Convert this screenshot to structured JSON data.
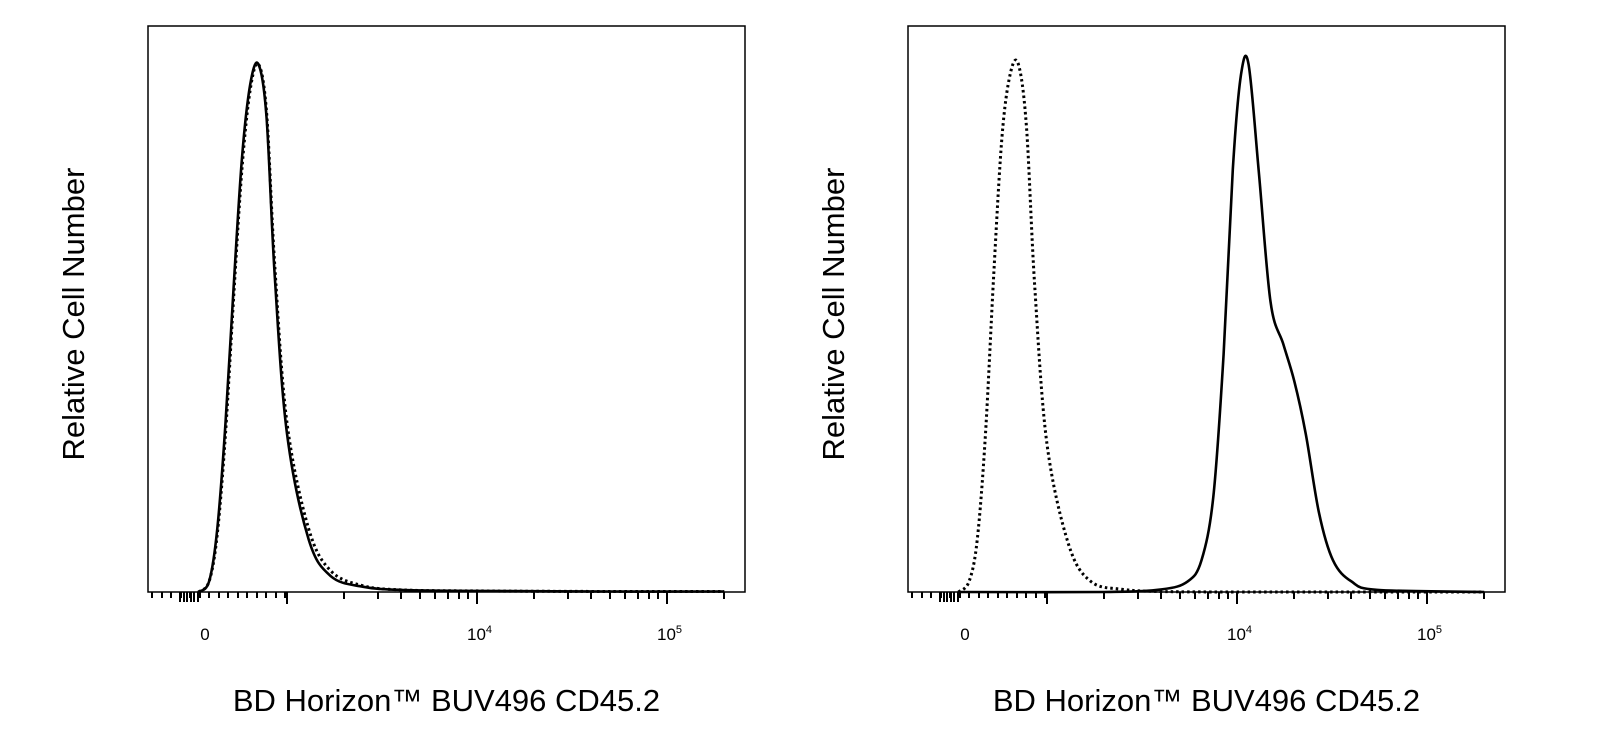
{
  "chart_data": [
    {
      "type": "line",
      "xlabel": "BD Horizon™ BUV496 CD45.2",
      "ylabel": "Relative Cell Number",
      "x_scale": "biexponential",
      "x_tick_labels": [
        {
          "value": 0,
          "base": "0",
          "exp": ""
        },
        {
          "value": 10000,
          "base": "10",
          "exp": "4"
        },
        {
          "value": 100000,
          "base": "10",
          "exp": "5"
        }
      ],
      "grid": false,
      "series": [
        {
          "style": "solid",
          "x": [
            -80,
            50,
            150,
            250,
            350,
            450,
            550,
            650,
            750,
            850,
            1000,
            1300,
            1700,
            2500,
            4000,
            10000,
            50000,
            200000
          ],
          "y": [
            0,
            0.02,
            0.12,
            0.32,
            0.58,
            0.82,
            0.96,
            1.0,
            0.9,
            0.6,
            0.3,
            0.1,
            0.03,
            0.01,
            0.004,
            0.002,
            0.001,
            0.001
          ]
        },
        {
          "style": "dotted",
          "x": [
            -80,
            50,
            150,
            250,
            350,
            450,
            550,
            650,
            750,
            850,
            1000,
            1300,
            1700,
            2500,
            4000,
            10000,
            50000,
            200000
          ],
          "y": [
            0,
            0.02,
            0.11,
            0.3,
            0.56,
            0.8,
            0.95,
            1.0,
            0.91,
            0.62,
            0.32,
            0.12,
            0.04,
            0.012,
            0.004,
            0.002,
            0.001,
            0.001
          ]
        }
      ]
    },
    {
      "type": "line",
      "xlabel": "BD Horizon™ BUV496 CD45.2",
      "ylabel": "Relative Cell Number",
      "x_scale": "biexponential",
      "x_tick_labels": [
        {
          "value": 0,
          "base": "0",
          "exp": ""
        },
        {
          "value": 10000,
          "base": "10",
          "exp": "4"
        },
        {
          "value": 100000,
          "base": "10",
          "exp": "5"
        }
      ],
      "grid": false,
      "series": [
        {
          "style": "dotted",
          "x": [
            -80,
            50,
            150,
            250,
            350,
            450,
            550,
            650,
            750,
            850,
            1000,
            1300,
            1700,
            2500,
            4000,
            10000,
            200000
          ],
          "y": [
            0,
            0.02,
            0.1,
            0.3,
            0.6,
            0.86,
            0.98,
            1.0,
            0.88,
            0.58,
            0.28,
            0.09,
            0.02,
            0.005,
            0.001,
            0.0,
            0.0
          ]
        },
        {
          "style": "solid",
          "x": [
            -80,
            2000,
            4000,
            5500,
            6500,
            7500,
            8500,
            9500,
            10500,
            11500,
            13000,
            15000,
            17500,
            20000,
            23000,
            27000,
            32000,
            40000,
            55000,
            200000
          ],
          "y": [
            0,
            0.0,
            0.005,
            0.02,
            0.06,
            0.18,
            0.45,
            0.8,
            0.98,
            1.0,
            0.8,
            0.55,
            0.47,
            0.4,
            0.3,
            0.15,
            0.06,
            0.02,
            0.004,
            0.0
          ]
        }
      ]
    }
  ]
}
